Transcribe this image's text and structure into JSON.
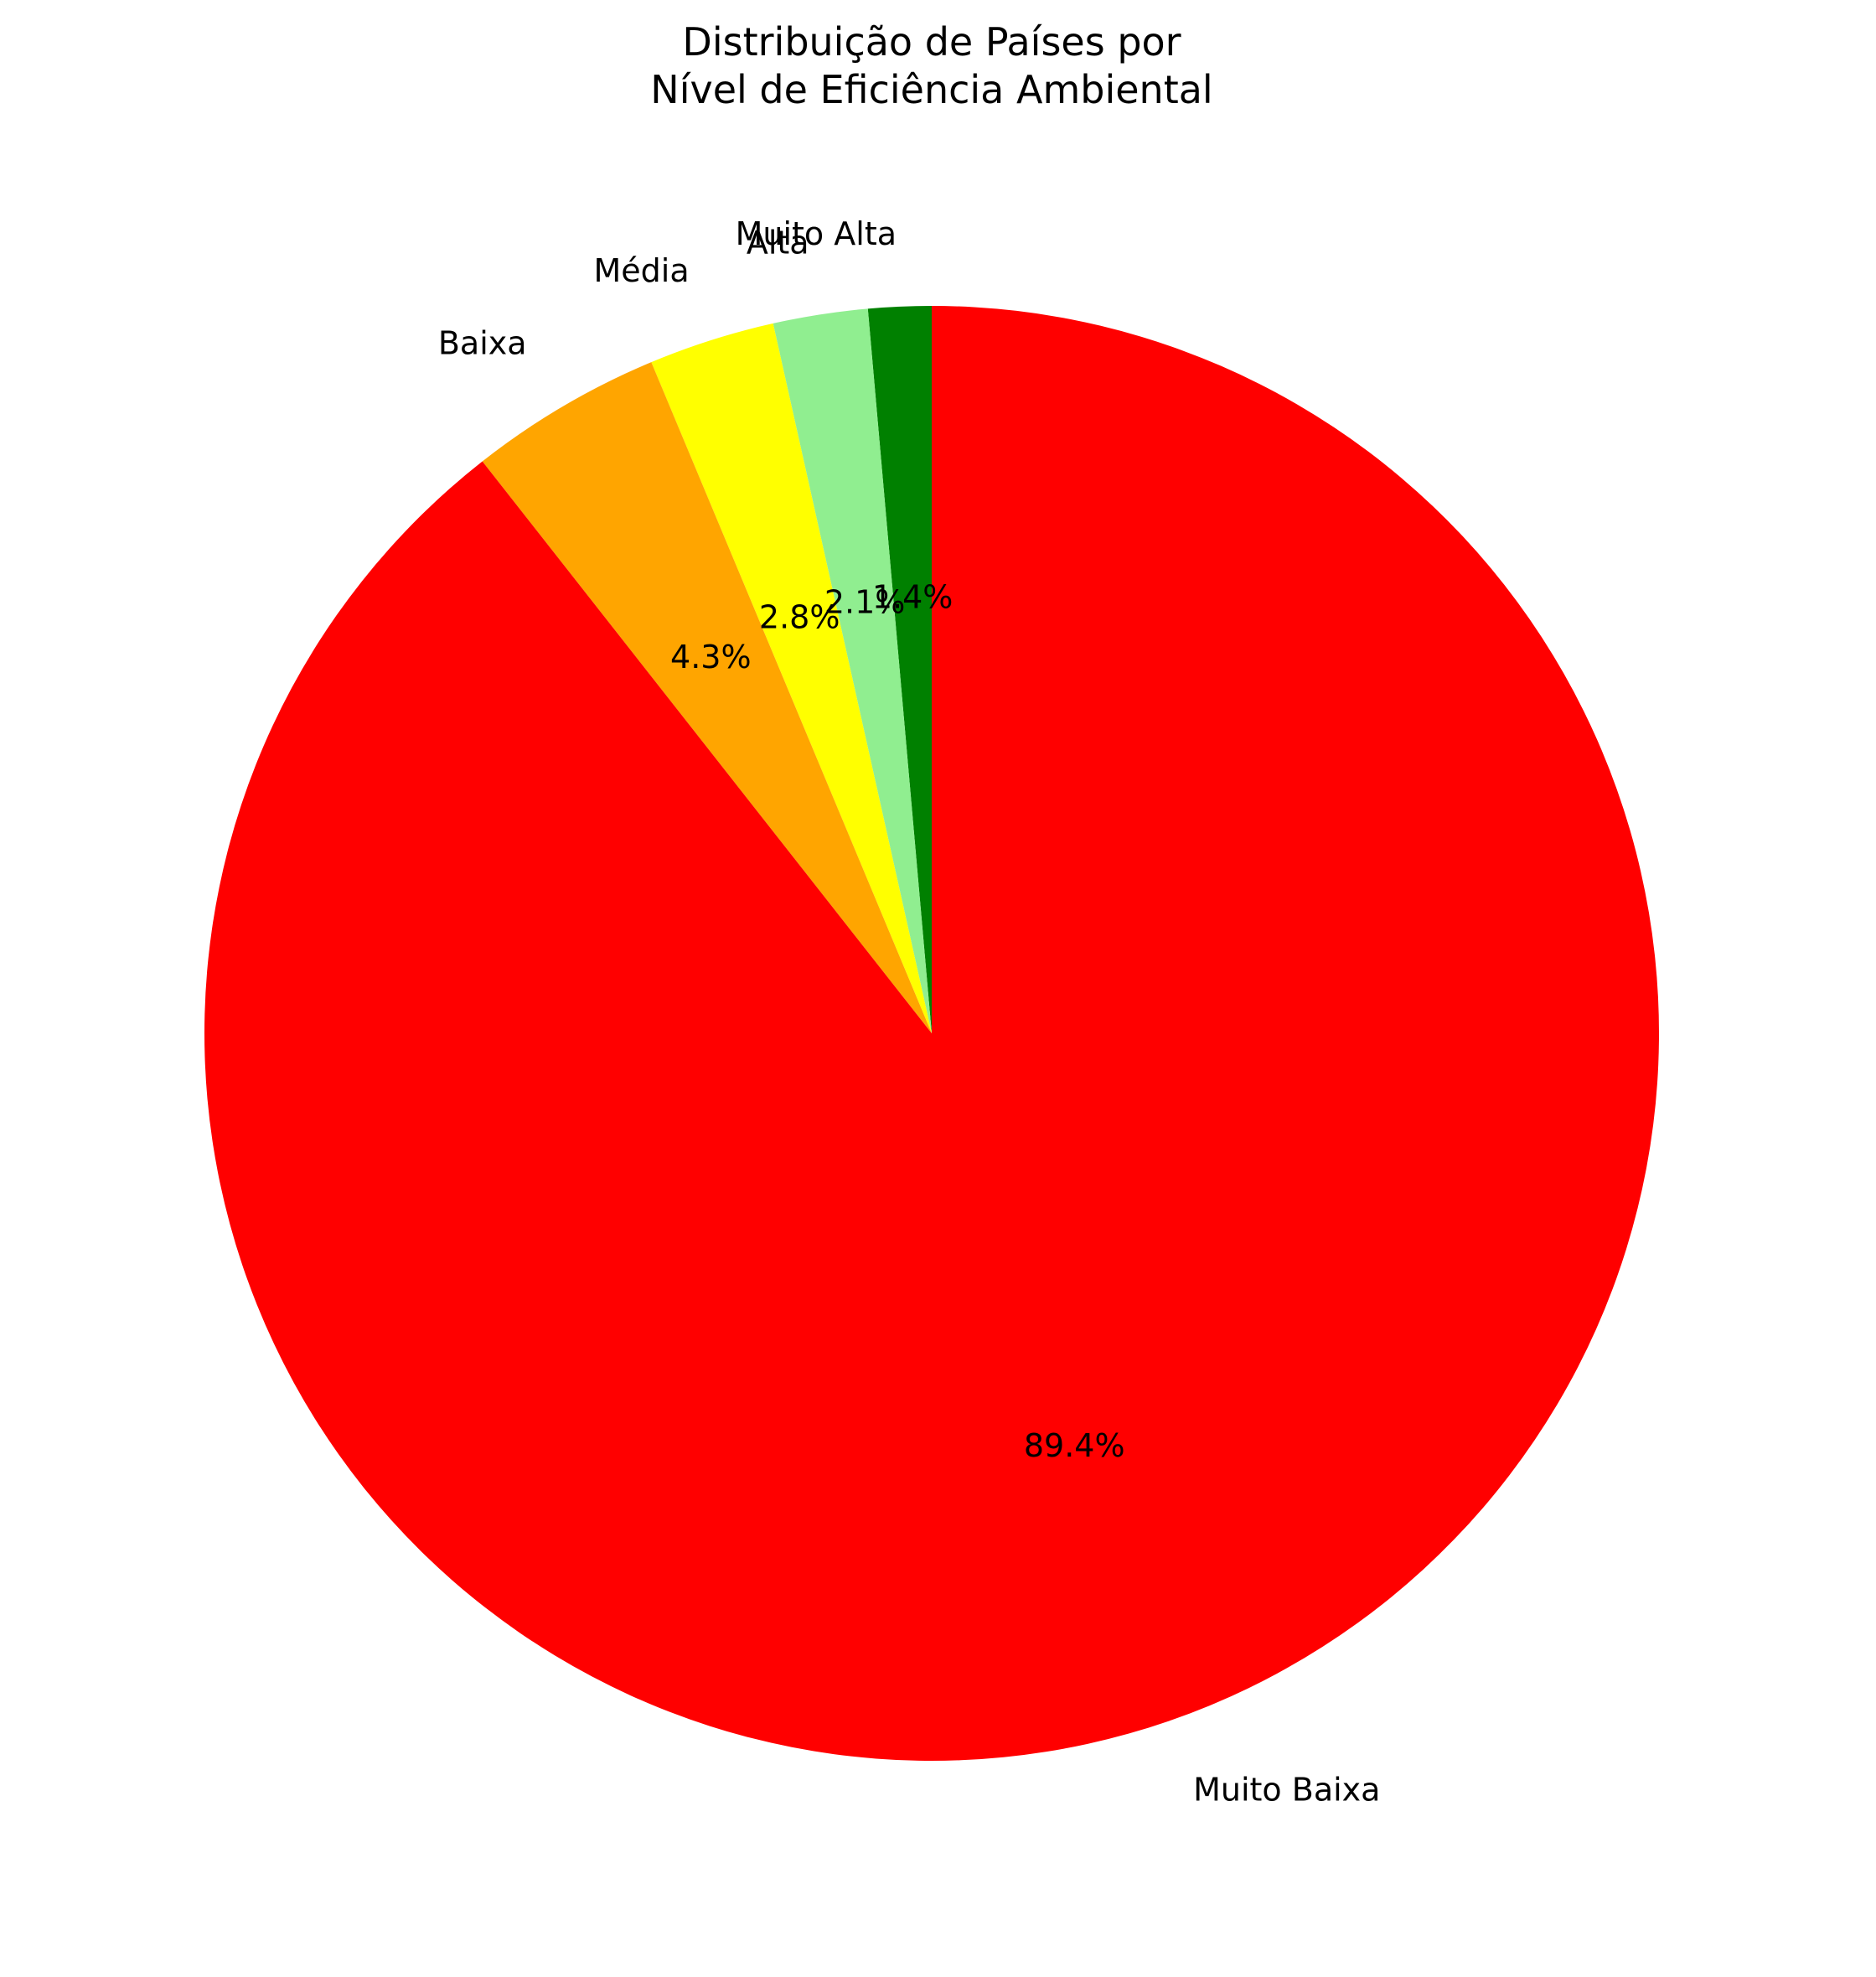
{
  "chart_data": {
    "type": "pie",
    "title": [
      "Distribuição de Países por",
      "Nível de Eficiência Ambiental"
    ],
    "start_angle_deg": 90,
    "direction": "counterclockwise",
    "slices": [
      {
        "label": "Muito Alta",
        "value": 1.4,
        "pct_label": "1.4%",
        "color": "#008000"
      },
      {
        "label": "Alta",
        "value": 2.1,
        "pct_label": "2.1%",
        "color": "#90EE90"
      },
      {
        "label": "Média",
        "value": 2.8,
        "pct_label": "2.8%",
        "color": "#FFFF00"
      },
      {
        "label": "Baixa",
        "value": 4.3,
        "pct_label": "4.3%",
        "color": "#FFA500"
      },
      {
        "label": "Muito Baixa",
        "value": 89.4,
        "pct_label": "89.4%",
        "color": "#FF0000"
      }
    ]
  }
}
